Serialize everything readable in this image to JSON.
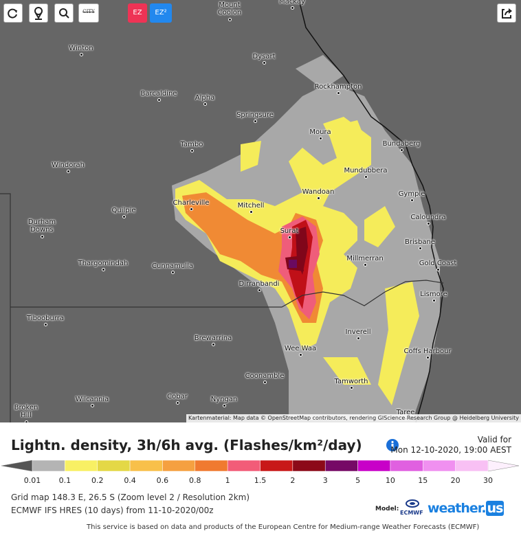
{
  "toolbar": {
    "city": "CITY",
    "ez": "EZ",
    "ez2": "EZ²"
  },
  "cities": [
    "Mackay",
    "Mount Coolon",
    "Winton",
    "Dysart",
    "Rockhampton",
    "Barcaldine",
    "Alpha",
    "Springsure",
    "Moura",
    "Bundaberg",
    "Tambo",
    "Windorah",
    "Mundubbera",
    "Wandoan",
    "Gympie",
    "Charleville",
    "Mitchell",
    "Quilpie",
    "Caloundra",
    "Durham Downs",
    "Surat",
    "Brisbane",
    "Millmerran",
    "Thargomindah",
    "Cunnamulla",
    "Gold Coast",
    "Dirranbandi",
    "Lismore",
    "Tibooburra",
    "Inverell",
    "Brewarrina",
    "Wee Waa",
    "Coffs Harbour",
    "Coonamble",
    "Tamworth",
    "Wilcannia",
    "Cobar",
    "Nyngan",
    "Broken Hill",
    "Taree"
  ],
  "attribution": "Kartenmaterial: Map data © OpenStreetMap contributors, rendering GIScience Research Group @ Heidelberg University",
  "header": {
    "title": "Lightn. density, 3h/6h avg. (Flashes/km²/day)",
    "valid_label": "Valid for",
    "valid_time": "Mon 12-10-2020, 19:00 AEST"
  },
  "legend": {
    "thresholds": [
      0.01,
      0.1,
      0.2,
      0.4,
      0.6,
      0.8,
      1,
      1.5,
      2,
      3,
      5,
      10,
      15,
      20,
      30
    ],
    "colors": [
      "#b4b4b4",
      "#f8f064",
      "#e4d846",
      "#f8c04a",
      "#f5a040",
      "#f07a30",
      "#f25c78",
      "#c81818",
      "#8c0a18",
      "#760a66",
      "#c800c8",
      "#e060e0",
      "#f090f0",
      "#f8c0f4"
    ],
    "below_color": "#555555",
    "above_color": "#fdf0fd"
  },
  "info": {
    "grid": "Grid map 148.3 E, 26.5 S (Zoom level 2 / Resolution 2km)",
    "model_run": "ECMWF IFS HRES (10 days) from 11-10-2020/00z",
    "model_label": "Model:",
    "model_logo": "ECMWF",
    "brand_main": "weather.",
    "brand_tld": "us"
  },
  "footer": "This service is based on data and products of the European Centre for Medium-range Weather Forecasts (ECMWF)"
}
